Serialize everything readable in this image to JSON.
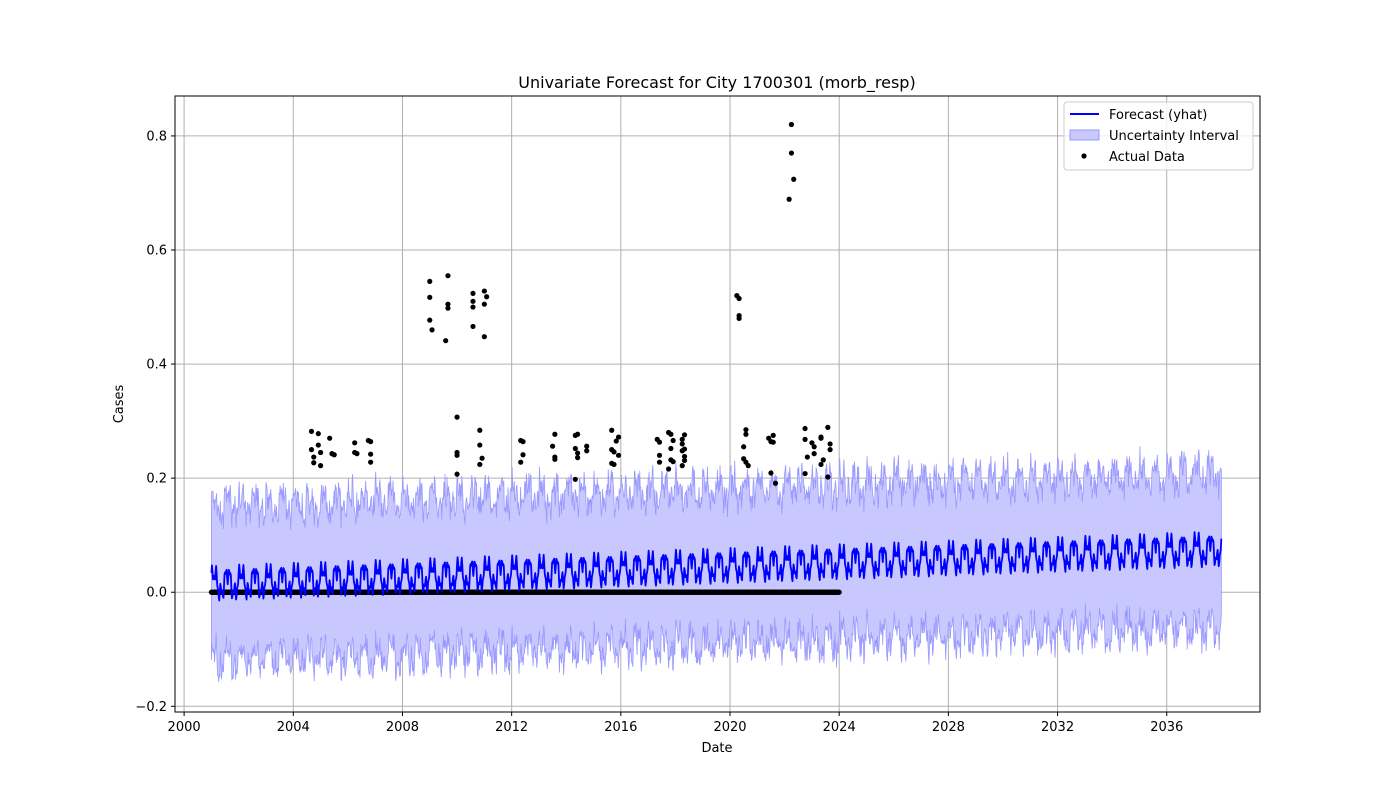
{
  "chart_data": {
    "type": "line",
    "title": "Univariate Forecast for City 1700301 (morb_resp)",
    "xlabel": "Date",
    "ylabel": "Cases",
    "x_type": "date",
    "xlim": [
      "1999-09-01",
      "2039-06-01"
    ],
    "ylim": [
      -0.21,
      0.87
    ],
    "xticks": [
      "2000",
      "2004",
      "2008",
      "2012",
      "2016",
      "2020",
      "2024",
      "2028",
      "2032",
      "2036"
    ],
    "yticks": [
      "−0.2",
      "0.0",
      "0.2",
      "0.4",
      "0.6",
      "0.8"
    ],
    "grid": true,
    "legend_position": "top-right",
    "legend": [
      "Forecast (yhat)",
      "Uncertainty Interval",
      "Actual Data"
    ],
    "colors": {
      "forecast": "#0000ff",
      "interval_fill": "#c8c8ff",
      "interval_edge": "#9999ff",
      "actual": "#000000",
      "grid": "#b0b0b0"
    },
    "forecast": {
      "start": "2001-01",
      "end": "2038-01",
      "frequency": "monthly",
      "trend_start": 0.015,
      "trend_end": 0.075,
      "interval_half_width": 0.135
    },
    "actual_zero_segment": {
      "start": "2001-01",
      "end": "2024-01",
      "value": 0.0
    },
    "actual_points": [
      {
        "x": "2004-09",
        "y": 0.282
      },
      {
        "x": "2004-09",
        "y": 0.25
      },
      {
        "x": "2004-10",
        "y": 0.237
      },
      {
        "x": "2004-10",
        "y": 0.227
      },
      {
        "x": "2004-12",
        "y": 0.278
      },
      {
        "x": "2004-12",
        "y": 0.258
      },
      {
        "x": "2005-01",
        "y": 0.245
      },
      {
        "x": "2005-01",
        "y": 0.222
      },
      {
        "x": "2005-05",
        "y": 0.27
      },
      {
        "x": "2005-06",
        "y": 0.243
      },
      {
        "x": "2005-07",
        "y": 0.241
      },
      {
        "x": "2006-04",
        "y": 0.262
      },
      {
        "x": "2006-04",
        "y": 0.245
      },
      {
        "x": "2006-05",
        "y": 0.243
      },
      {
        "x": "2006-10",
        "y": 0.266
      },
      {
        "x": "2006-11",
        "y": 0.264
      },
      {
        "x": "2006-11",
        "y": 0.242
      },
      {
        "x": "2006-11",
        "y": 0.228
      },
      {
        "x": "2009-01",
        "y": 0.545
      },
      {
        "x": "2009-01",
        "y": 0.517
      },
      {
        "x": "2009-01",
        "y": 0.477
      },
      {
        "x": "2009-02",
        "y": 0.46
      },
      {
        "x": "2009-09",
        "y": 0.555
      },
      {
        "x": "2009-09",
        "y": 0.505
      },
      {
        "x": "2009-09",
        "y": 0.498
      },
      {
        "x": "2009-08",
        "y": 0.441
      },
      {
        "x": "2010-01",
        "y": 0.307
      },
      {
        "x": "2010-01",
        "y": 0.245
      },
      {
        "x": "2010-01",
        "y": 0.24
      },
      {
        "x": "2010-01",
        "y": 0.207
      },
      {
        "x": "2010-08",
        "y": 0.524
      },
      {
        "x": "2010-08",
        "y": 0.51
      },
      {
        "x": "2010-08",
        "y": 0.5
      },
      {
        "x": "2010-08",
        "y": 0.466
      },
      {
        "x": "2010-11",
        "y": 0.284
      },
      {
        "x": "2010-11",
        "y": 0.258
      },
      {
        "x": "2010-12",
        "y": 0.235
      },
      {
        "x": "2010-11",
        "y": 0.224
      },
      {
        "x": "2011-01",
        "y": 0.528
      },
      {
        "x": "2011-02",
        "y": 0.518
      },
      {
        "x": "2011-01",
        "y": 0.505
      },
      {
        "x": "2011-01",
        "y": 0.448
      },
      {
        "x": "2012-05",
        "y": 0.266
      },
      {
        "x": "2012-06",
        "y": 0.264
      },
      {
        "x": "2012-06",
        "y": 0.241
      },
      {
        "x": "2012-05",
        "y": 0.228
      },
      {
        "x": "2013-08",
        "y": 0.277
      },
      {
        "x": "2013-07",
        "y": 0.256
      },
      {
        "x": "2013-08",
        "y": 0.237
      },
      {
        "x": "2013-08",
        "y": 0.233
      },
      {
        "x": "2014-05",
        "y": 0.275
      },
      {
        "x": "2014-06",
        "y": 0.277
      },
      {
        "x": "2014-05",
        "y": 0.252
      },
      {
        "x": "2014-06",
        "y": 0.244
      },
      {
        "x": "2014-06",
        "y": 0.236
      },
      {
        "x": "2014-05",
        "y": 0.198
      },
      {
        "x": "2014-10",
        "y": 0.256
      },
      {
        "x": "2014-10",
        "y": 0.248
      },
      {
        "x": "2015-09",
        "y": 0.284
      },
      {
        "x": "2015-09",
        "y": 0.25
      },
      {
        "x": "2015-10",
        "y": 0.246
      },
      {
        "x": "2015-09",
        "y": 0.226
      },
      {
        "x": "2015-10",
        "y": 0.224
      },
      {
        "x": "2015-12",
        "y": 0.272
      },
      {
        "x": "2015-11",
        "y": 0.265
      },
      {
        "x": "2015-12",
        "y": 0.24
      },
      {
        "x": "2017-05",
        "y": 0.268
      },
      {
        "x": "2017-06",
        "y": 0.263
      },
      {
        "x": "2017-06",
        "y": 0.24
      },
      {
        "x": "2017-06",
        "y": 0.228
      },
      {
        "x": "2017-10",
        "y": 0.28
      },
      {
        "x": "2017-11",
        "y": 0.277
      },
      {
        "x": "2017-12",
        "y": 0.266
      },
      {
        "x": "2017-11",
        "y": 0.252
      },
      {
        "x": "2017-11",
        "y": 0.232
      },
      {
        "x": "2017-12",
        "y": 0.229
      },
      {
        "x": "2017-10",
        "y": 0.216
      },
      {
        "x": "2018-04",
        "y": 0.268
      },
      {
        "x": "2018-05",
        "y": 0.276
      },
      {
        "x": "2018-04",
        "y": 0.26
      },
      {
        "x": "2018-05",
        "y": 0.251
      },
      {
        "x": "2018-04",
        "y": 0.248
      },
      {
        "x": "2018-05",
        "y": 0.238
      },
      {
        "x": "2018-05",
        "y": 0.231
      },
      {
        "x": "2018-04",
        "y": 0.222
      },
      {
        "x": "2020-04",
        "y": 0.52
      },
      {
        "x": "2020-05",
        "y": 0.515
      },
      {
        "x": "2020-05",
        "y": 0.485
      },
      {
        "x": "2020-05",
        "y": 0.48
      },
      {
        "x": "2020-08",
        "y": 0.285
      },
      {
        "x": "2020-08",
        "y": 0.277
      },
      {
        "x": "2020-07",
        "y": 0.255
      },
      {
        "x": "2020-07",
        "y": 0.234
      },
      {
        "x": "2020-08",
        "y": 0.228
      },
      {
        "x": "2020-09",
        "y": 0.222
      },
      {
        "x": "2021-06",
        "y": 0.27
      },
      {
        "x": "2021-07",
        "y": 0.264
      },
      {
        "x": "2021-08",
        "y": 0.275
      },
      {
        "x": "2021-08",
        "y": 0.263
      },
      {
        "x": "2021-07",
        "y": 0.209
      },
      {
        "x": "2021-09",
        "y": 0.191
      },
      {
        "x": "2022-04",
        "y": 0.82
      },
      {
        "x": "2022-04",
        "y": 0.77
      },
      {
        "x": "2022-05",
        "y": 0.724
      },
      {
        "x": "2022-03",
        "y": 0.689
      },
      {
        "x": "2022-10",
        "y": 0.287
      },
      {
        "x": "2022-10",
        "y": 0.268
      },
      {
        "x": "2022-11",
        "y": 0.237
      },
      {
        "x": "2022-10",
        "y": 0.208
      },
      {
        "x": "2023-01",
        "y": 0.262
      },
      {
        "x": "2023-02",
        "y": 0.255
      },
      {
        "x": "2023-02",
        "y": 0.243
      },
      {
        "x": "2023-05",
        "y": 0.272
      },
      {
        "x": "2023-05",
        "y": 0.27
      },
      {
        "x": "2023-06",
        "y": 0.232
      },
      {
        "x": "2023-05",
        "y": 0.224
      },
      {
        "x": "2023-08",
        "y": 0.289
      },
      {
        "x": "2023-09",
        "y": 0.26
      },
      {
        "x": "2023-09",
        "y": 0.25
      },
      {
        "x": "2023-08",
        "y": 0.202
      }
    ]
  }
}
